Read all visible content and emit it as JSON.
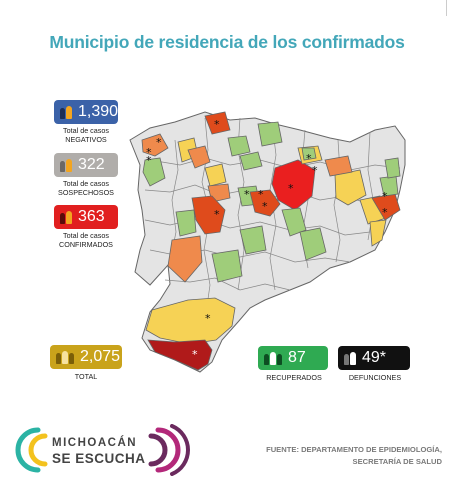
{
  "title": "Municipio de residencia de los confirmados",
  "stats": {
    "negativos": {
      "value": "1,390",
      "label_line1": "Total de casos",
      "label_line2": "NEGATIVOS",
      "color": "#3b62a8"
    },
    "sospechosos": {
      "value": "322",
      "label_line1": "Total de casos",
      "label_line2": "SOSPECHOSOS",
      "color": "#b0adaa"
    },
    "confirmados": {
      "value": "363",
      "label_line1": "Total de casos",
      "label_line2": "CONFIRMADOS",
      "color": "#e11f1f"
    },
    "total": {
      "value": "2,075",
      "label": "TOTAL",
      "color": "#c9a31b"
    },
    "recuperados": {
      "value": "87",
      "label": "RECUPERADOS",
      "color": "#2faa52"
    },
    "defunciones": {
      "value": "49*",
      "label": "DEFUNCIONES",
      "color": "#111111"
    }
  },
  "logo": {
    "line1": "MICHOACÁN",
    "line2": "SE ESCUCHA"
  },
  "source": {
    "line1": "FUENTE: DEPARTAMENTO DE EPIDEMIOLOGÍA,",
    "line2": "SECRETARÍA DE SALUD"
  },
  "map_colors": {
    "none": "#e4e4e4",
    "low": "#9fcd7a",
    "mid": "#f6d255",
    "high": "#ef8a4c",
    "veryhigh": "#df4b1c",
    "max": "#ea1f1f",
    "deaths": "#b01a1a",
    "border": "#666666"
  }
}
